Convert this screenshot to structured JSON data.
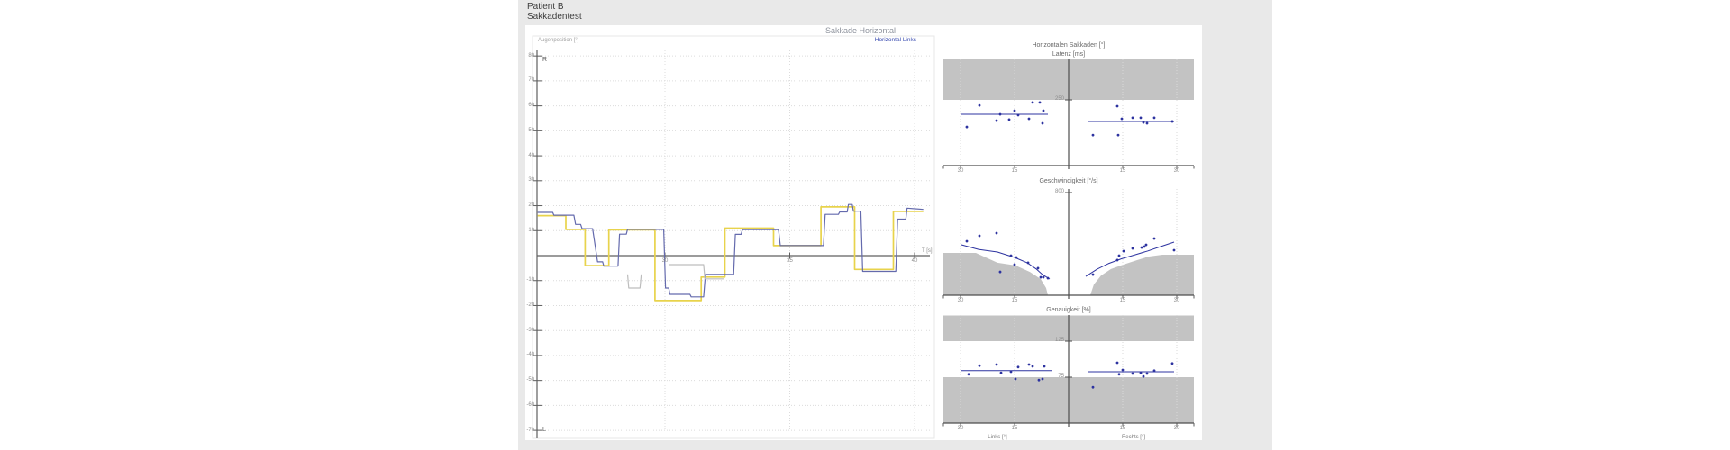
{
  "header": {
    "patient_label": "Patient B",
    "test_label": "Sakkadentest"
  },
  "main_chart": {
    "title": "Sakkade Horizontal",
    "legend_label": "Horizontal Links",
    "y_axis_label": "Augenposition [°]",
    "x_axis_unit": "T [s]",
    "right_label": "R",
    "left_label": "L",
    "colors": {
      "stimulus": "#e8d34c",
      "eye": "#646aad",
      "secondary": "#bdbdbd",
      "axis": "#5f5f5f",
      "grid": "#dcdcdc",
      "border": "#e7e7e7"
    }
  },
  "panels": {
    "group_title": "Horizontalen Sakkaden [°]",
    "latenz_title": "Latenz [ms]",
    "geschwindigkeit_title": "Geschwindigkeit [°/s]",
    "genauigkeit_title": "Genauigkeit [%]",
    "latenz_threshold_label": "250",
    "geschwindigkeit_axis_label": "800",
    "genauigkeit_upper_label": "125",
    "genauigkeit_lower_label": "75",
    "links_axis_label": "Links [°]",
    "rechts_axis_label": "Rechts [°]",
    "amp_tick_labels": [
      "30",
      "15"
    ],
    "band_color": "#c3c3c3",
    "dot_color": "#2d33a0"
  },
  "chart_data": [
    {
      "id": "augenposition",
      "type": "line",
      "title": "Sakkade Horizontal",
      "ylabel": "Augenposition [°]",
      "xlabel": "T [s]",
      "xlim": [
        24.9,
        40.35
      ],
      "ylim": [
        -70,
        80
      ],
      "x_ticks": [
        30,
        35,
        40
      ],
      "y_ticks": [
        80,
        70,
        60,
        50,
        40,
        30,
        20,
        10,
        -10,
        -20,
        -30,
        -40,
        -50,
        -60,
        -70
      ],
      "series": [
        {
          "name": "Stimulus",
          "color_key": "stimulus",
          "points": [
            [
              24.9,
              16
            ],
            [
              26.03,
              16
            ],
            [
              26.03,
              10.5
            ],
            [
              26.8,
              10.5
            ],
            [
              26.8,
              -4
            ],
            [
              27.75,
              -4
            ],
            [
              27.75,
              10.3
            ],
            [
              29.6,
              10.3
            ],
            [
              29.6,
              -18
            ],
            [
              31.45,
              -18
            ],
            [
              31.45,
              -8.6
            ],
            [
              32.4,
              -8.6
            ],
            [
              32.4,
              11
            ],
            [
              34.35,
              11
            ],
            [
              34.35,
              4
            ],
            [
              36.25,
              4
            ],
            [
              36.25,
              19.5
            ],
            [
              37.6,
              19.5
            ],
            [
              37.6,
              -5.5
            ],
            [
              39.15,
              -5.5
            ],
            [
              39.15,
              17.7
            ],
            [
              40.35,
              17.7
            ]
          ]
        },
        {
          "name": "Horizontal Links",
          "color_key": "eye",
          "points": [
            [
              24.9,
              17.3
            ],
            [
              25.5,
              17.3
            ],
            [
              25.55,
              16.2
            ],
            [
              26.35,
              16.2
            ],
            [
              26.42,
              12.5
            ],
            [
              26.62,
              12.5
            ],
            [
              26.68,
              10.8
            ],
            [
              27.1,
              10.8
            ],
            [
              27.3,
              -2.5
            ],
            [
              27.5,
              -2.5
            ],
            [
              27.55,
              -4.2
            ],
            [
              28.12,
              -4.2
            ],
            [
              28.18,
              8.6
            ],
            [
              28.45,
              8.6
            ],
            [
              28.5,
              10.5
            ],
            [
              29.95,
              10.5
            ],
            [
              30.02,
              -13
            ],
            [
              30.15,
              -13
            ],
            [
              30.2,
              -15.5
            ],
            [
              31.0,
              -15.5
            ],
            [
              31.05,
              -16.5
            ],
            [
              31.55,
              -16.5
            ],
            [
              31.62,
              -7.5
            ],
            [
              32.75,
              -7.5
            ],
            [
              32.82,
              8.5
            ],
            [
              33.05,
              8.5
            ],
            [
              33.1,
              10.4
            ],
            [
              34.55,
              10.4
            ],
            [
              34.62,
              4
            ],
            [
              36.35,
              4
            ],
            [
              36.42,
              16.5
            ],
            [
              36.95,
              16.5
            ],
            [
              37.0,
              17.5
            ],
            [
              37.3,
              17.5
            ],
            [
              37.35,
              20.5
            ],
            [
              37.5,
              20.5
            ],
            [
              37.55,
              17.8
            ],
            [
              37.85,
              17.8
            ],
            [
              37.92,
              -6.3
            ],
            [
              39.25,
              -6.3
            ],
            [
              39.32,
              14.6
            ],
            [
              39.65,
              14.6
            ],
            [
              39.7,
              19
            ],
            [
              40.35,
              18.5
            ]
          ]
        },
        {
          "name": "Sekundaerspur-1",
          "color_key": "secondary",
          "points": [
            [
              28.5,
              -7.5
            ],
            [
              28.55,
              -13
            ],
            [
              29.0,
              -13
            ],
            [
              29.05,
              -7.5
            ]
          ]
        },
        {
          "name": "Sekundaerspur-2",
          "color_key": "secondary",
          "points": [
            [
              30.15,
              -3.6
            ],
            [
              31.55,
              -3.6
            ],
            [
              31.6,
              -9.3
            ],
            [
              32.35,
              -9.3
            ]
          ]
        }
      ]
    },
    {
      "id": "latenz",
      "type": "scatter",
      "title": "Latenz [ms]",
      "ylim": [
        0,
        404
      ],
      "threshold_ms": 250,
      "links": {
        "trend_ms": 195,
        "trend_amp_range": [
          30,
          5.75
        ],
        "points": [
          [
            28.25,
            147
          ],
          [
            24.75,
            229
          ],
          [
            20,
            171
          ],
          [
            19,
            195
          ],
          [
            16.5,
            175
          ],
          [
            15,
            209
          ],
          [
            14,
            192
          ],
          [
            11,
            178
          ],
          [
            10,
            240
          ],
          [
            8,
            240
          ],
          [
            7.25,
            161
          ],
          [
            7,
            209
          ]
        ]
      },
      "rechts": {
        "trend_ms": 168,
        "trend_amp_range": [
          5.25,
          29.25
        ],
        "points": [
          [
            6.75,
            116
          ],
          [
            13.5,
            226
          ],
          [
            13.75,
            116
          ],
          [
            14.75,
            178
          ],
          [
            17.75,
            182
          ],
          [
            20,
            182
          ],
          [
            20.75,
            164
          ],
          [
            21.75,
            161
          ],
          [
            23.75,
            182
          ],
          [
            28.75,
            168
          ]
        ]
      }
    },
    {
      "id": "geschwindigkeit",
      "type": "scatter",
      "title": "Geschwindigkeit [°/s]",
      "ylim": [
        0,
        828
      ],
      "axis_top_value": 800,
      "links": {
        "trend": [
          [
            29.75,
            393
          ],
          [
            25,
            357
          ],
          [
            19.75,
            337
          ],
          [
            15,
            295
          ],
          [
            11.5,
            253
          ],
          [
            9,
            205
          ],
          [
            7.25,
            161
          ],
          [
            5.25,
            126
          ]
        ],
        "points": [
          [
            28.25,
            421
          ],
          [
            24.75,
            463
          ],
          [
            20,
            484
          ],
          [
            19,
            182
          ],
          [
            16,
            309
          ],
          [
            15,
            239
          ],
          [
            14.5,
            295
          ],
          [
            11.25,
            253
          ],
          [
            8.5,
            211
          ],
          [
            7.75,
            140
          ],
          [
            7,
            140
          ],
          [
            5.75,
            133
          ]
        ],
        "norm_region": [
          [
            34.75,
            330
          ],
          [
            25.75,
            330
          ],
          [
            19.75,
            253
          ],
          [
            14.75,
            232
          ],
          [
            10.75,
            182
          ],
          [
            7.75,
            126
          ],
          [
            6.25,
            56
          ],
          [
            5.75,
            0
          ]
        ]
      },
      "rechts": {
        "trend": [
          [
            4.75,
            147
          ],
          [
            8,
            205
          ],
          [
            11,
            246
          ],
          [
            14.75,
            285
          ],
          [
            18.5,
            316
          ],
          [
            22,
            345
          ],
          [
            24.75,
            372
          ],
          [
            29.25,
            414
          ]
        ],
        "points": [
          [
            6.75,
            161
          ],
          [
            13.5,
            274
          ],
          [
            14,
            309
          ],
          [
            15.25,
            344
          ],
          [
            17.75,
            365
          ],
          [
            20.25,
            372
          ],
          [
            21,
            379
          ],
          [
            21.5,
            393
          ],
          [
            23.75,
            442
          ],
          [
            29.25,
            351
          ]
        ],
        "norm_region": [
          [
            6,
            0
          ],
          [
            7,
            84
          ],
          [
            9,
            154
          ],
          [
            11.75,
            204
          ],
          [
            15.25,
            239
          ],
          [
            19,
            274
          ],
          [
            22.25,
            302
          ],
          [
            26,
            316
          ],
          [
            34.75,
            316
          ]
        ]
      }
    },
    {
      "id": "genauigkeit",
      "type": "scatter",
      "title": "Genauigkeit [%]",
      "ylim": [
        11,
        161
      ],
      "upper_threshold_pct": 125,
      "lower_threshold_pct": 75,
      "links": {
        "trend_pct": 84,
        "trend_amp_range": [
          29.75,
          4.75
        ],
        "points": [
          [
            27.75,
            79
          ],
          [
            24.75,
            91
          ],
          [
            20,
            92.5
          ],
          [
            18.75,
            81
          ],
          [
            16,
            82.5
          ],
          [
            14.75,
            72.5
          ],
          [
            14,
            89
          ],
          [
            11,
            92.5
          ],
          [
            10,
            90
          ],
          [
            8.25,
            71
          ],
          [
            7.25,
            72.5
          ],
          [
            6.75,
            90
          ]
        ]
      },
      "rechts": {
        "trend_pct": 82.5,
        "trend_amp_range": [
          5.25,
          29.25
        ],
        "points": [
          [
            6.75,
            61
          ],
          [
            13.5,
            95
          ],
          [
            14,
            79
          ],
          [
            15,
            85
          ],
          [
            17.75,
            80
          ],
          [
            20,
            81
          ],
          [
            20.75,
            76
          ],
          [
            21.75,
            80
          ],
          [
            23.75,
            84
          ],
          [
            28.75,
            94
          ]
        ]
      }
    }
  ]
}
